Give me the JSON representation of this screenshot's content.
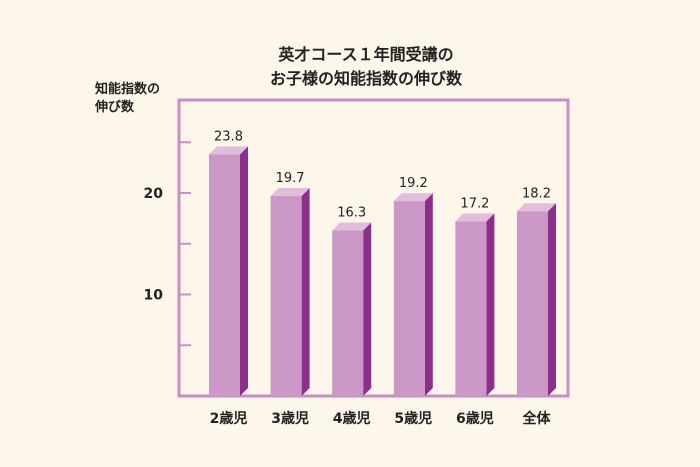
{
  "chart_data": {
    "type": "bar",
    "title_lines": [
      "英才コース１年間受講の",
      "お子様の知能指数の伸び数"
    ],
    "ylabel_lines": [
      "知能指数の",
      "伸び数"
    ],
    "categories": [
      "2歳児",
      "3歳児",
      "4歳児",
      "5歳児",
      "6歳児",
      "全体"
    ],
    "values": [
      23.8,
      19.7,
      16.3,
      19.2,
      17.2,
      18.2
    ],
    "value_labels": [
      "23.8",
      "19.7",
      "16.3",
      "19.2",
      "17.2",
      "18.2"
    ],
    "ylim": [
      0,
      30
    ],
    "yticks": [
      5,
      10,
      15,
      20,
      25
    ],
    "ytick_labels": [
      "",
      "10",
      "",
      "20",
      ""
    ],
    "colors": {
      "bar_front": "#cb97c7",
      "bar_side": "#8c2f8a",
      "bar_top": "#e2bedd",
      "frame": "#c98ec4",
      "background": "#fdf6ea"
    }
  }
}
